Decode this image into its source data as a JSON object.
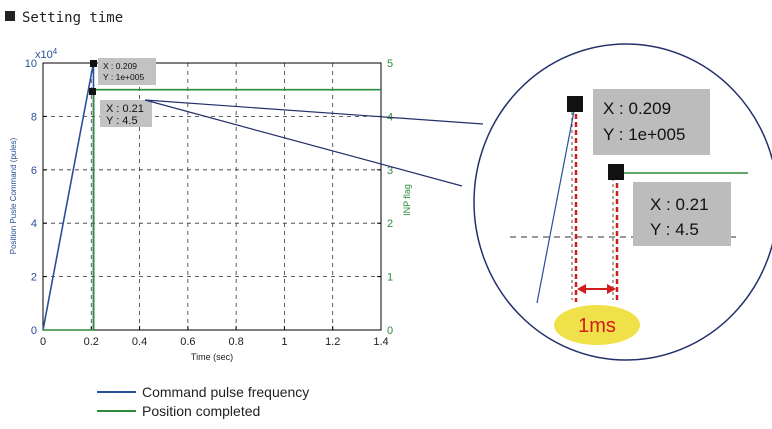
{
  "heading": {
    "bullet_icon": "black-square-icon",
    "text": "Setting time"
  },
  "chart_data": {
    "type": "line",
    "xlabel": "Time (sec)",
    "ylabel_left": "Position Pusle Command (pules)",
    "ylabel_right": "INP flag",
    "left_exponent": "x10",
    "left_exponent_power": "4",
    "xlim": [
      0,
      1.4
    ],
    "ylim_left": [
      0,
      10
    ],
    "ylim_right": [
      0,
      5
    ],
    "x_ticks": [
      0,
      0.2,
      0.4,
      0.6,
      0.8,
      1,
      1.2,
      1.4
    ],
    "x_tick_labels": [
      "0",
      "0.2",
      "0.4",
      "0.6",
      "0.8",
      "1",
      "1.2",
      "1.4"
    ],
    "y_left_ticks": [
      0,
      2,
      4,
      6,
      8,
      10
    ],
    "y_left_tick_labels": [
      "0",
      "2",
      "4",
      "6",
      "8",
      "10"
    ],
    "y_right_ticks": [
      0,
      1,
      2,
      3,
      4,
      5
    ],
    "y_right_tick_labels": [
      "0",
      "1",
      "2",
      "3",
      "4",
      "5"
    ],
    "grid": true,
    "series": [
      {
        "name": "Command pulse frequency",
        "axis": "left",
        "color": "#2a4f9a",
        "x": [
          0,
          0.209,
          0.209
        ],
        "y": [
          0,
          10,
          0
        ]
      },
      {
        "name": "Position completed",
        "axis": "right",
        "color": "#2e8b3a",
        "x": [
          0,
          0.21,
          0.21,
          1.4
        ],
        "y": [
          0,
          0,
          4.5,
          4.5
        ]
      }
    ],
    "annotations": [
      {
        "line1": "X : 0.209",
        "line2": "Y : 1e+005"
      },
      {
        "line1": "X : 0.21",
        "line2": "Y : 4.5"
      }
    ],
    "zoom": {
      "callout_label": "1ms"
    }
  },
  "legend": [
    {
      "label": "Command pulse frequency",
      "color": "#2a4f9a"
    },
    {
      "label": "Position completed",
      "color": "#2e8b3a"
    }
  ]
}
